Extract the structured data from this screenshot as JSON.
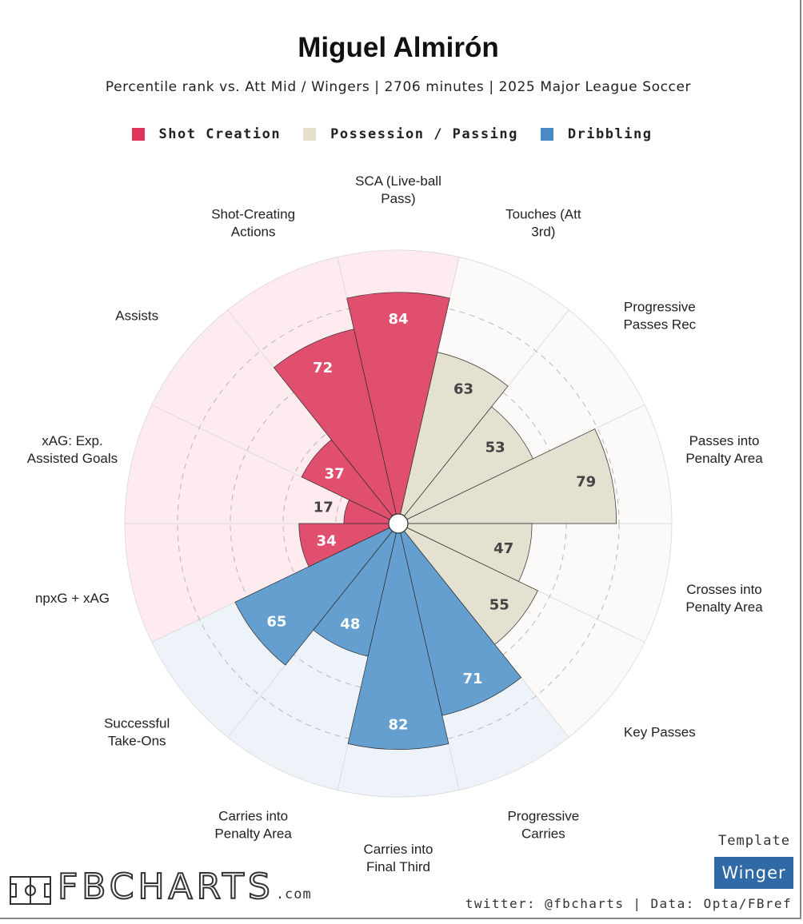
{
  "title": "Miguel Almirón",
  "subtitle": "Percentile rank vs. Att Mid / Wingers | 2706 minutes | 2025 Major League Soccer",
  "legend": [
    {
      "label": "Shot Creation",
      "color": "#e0325a"
    },
    {
      "label": "Possession / Passing",
      "color": "#e5e0cc"
    },
    {
      "label": "Dribbling",
      "color": "#4a89c4"
    }
  ],
  "chart_data": {
    "type": "radar-bar",
    "title": "Miguel Almirón",
    "range": [
      0,
      100
    ],
    "categories": [
      {
        "label": "SCA (Live-ball Pass)",
        "lines": [
          "SCA (Live-ball",
          "Pass)"
        ],
        "value": 84,
        "group": "Shot Creation"
      },
      {
        "label": "Touches (Att 3rd)",
        "lines": [
          "Touches (Att",
          "3rd)"
        ],
        "value": 63,
        "group": "Possession / Passing"
      },
      {
        "label": "Progressive Passes Rec",
        "lines": [
          "Progressive",
          "Passes Rec"
        ],
        "value": 53,
        "group": "Possession / Passing"
      },
      {
        "label": "Passes into Penalty Area",
        "lines": [
          "Passes into",
          "Penalty Area"
        ],
        "value": 79,
        "group": "Possession / Passing"
      },
      {
        "label": "Crosses into Penalty Area",
        "lines": [
          "Crosses into",
          "Penalty Area"
        ],
        "value": 47,
        "group": "Possession / Passing"
      },
      {
        "label": "Key Passes",
        "lines": [
          "Key Passes"
        ],
        "value": 55,
        "group": "Possession / Passing"
      },
      {
        "label": "Progressive Carries",
        "lines": [
          "Progressive",
          "Carries"
        ],
        "value": 71,
        "group": "Dribbling"
      },
      {
        "label": "Carries into Final Third",
        "lines": [
          "Carries into",
          "Final Third"
        ],
        "value": 82,
        "group": "Dribbling"
      },
      {
        "label": "Carries into Penalty Area",
        "lines": [
          "Carries into",
          "Penalty Area"
        ],
        "value": 48,
        "group": "Dribbling"
      },
      {
        "label": "Successful Take-Ons",
        "lines": [
          "Successful",
          "Take-Ons"
        ],
        "value": 65,
        "group": "Dribbling"
      },
      {
        "label": "npxG + xAG",
        "lines": [
          "npxG + xAG"
        ],
        "value": 34,
        "group": "Shot Creation"
      },
      {
        "label": "xAG: Exp. Assisted Goals",
        "lines": [
          "xAG: Exp.",
          "Assisted Goals"
        ],
        "value": 17,
        "group": "Shot Creation"
      },
      {
        "label": "Assists",
        "lines": [
          "Assists"
        ],
        "value": 37,
        "group": "Shot Creation"
      },
      {
        "label": "Shot-Creating Actions",
        "lines": [
          "Shot-Creating",
          "Actions"
        ],
        "value": 72,
        "group": "Shot Creation"
      }
    ],
    "gridlines": [
      20,
      40,
      60,
      80
    ],
    "group_colors": {
      "Shot Creation": {
        "bar": "#e0506e",
        "bg": "#fdebef"
      },
      "Possession / Passing": {
        "bar": "#e5e1d1",
        "bg": "#fbfaf8"
      },
      "Dribbling": {
        "bar": "#649fd0",
        "bg": "#eef3fa"
      }
    }
  },
  "template": {
    "label": "Template",
    "value": "Winger",
    "color": "#2f6aa6"
  },
  "credits": "twitter: @fbcharts | Data: Opta/FBref",
  "logo": {
    "text": "FBCHARTS",
    "suffix": ".com"
  }
}
